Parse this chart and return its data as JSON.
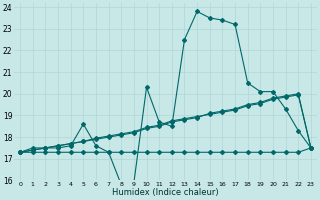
{
  "xlabel": "Humidex (Indice chaleur)",
  "background_color": "#c8e8e8",
  "grid_color": "#b0d4d4",
  "line_color": "#006868",
  "xlim": [
    -0.5,
    23.5
  ],
  "ylim": [
    16,
    24.2
  ],
  "xtick_labels": [
    "0",
    "1",
    "2",
    "3",
    "4",
    "5",
    "6",
    "7",
    "8",
    "9",
    "10",
    "11",
    "12",
    "13",
    "14",
    "15",
    "16",
    "17",
    "18",
    "19",
    "20",
    "21",
    "22",
    "23"
  ],
  "ytick_values": [
    16,
    17,
    18,
    19,
    20,
    21,
    22,
    23,
    24
  ],
  "series": {
    "main": [
      17.3,
      17.5,
      17.5,
      17.5,
      17.6,
      18.6,
      17.6,
      17.3,
      15.8,
      15.9,
      20.3,
      18.7,
      18.5,
      22.5,
      23.8,
      23.5,
      23.4,
      23.2,
      20.5,
      20.1,
      20.1,
      19.3,
      18.3,
      17.5
    ],
    "linear1": [
      17.3,
      17.4,
      17.5,
      17.6,
      17.7,
      17.8,
      17.9,
      18.0,
      18.1,
      18.2,
      18.4,
      18.5,
      18.7,
      18.8,
      18.9,
      19.1,
      19.2,
      19.3,
      19.5,
      19.6,
      19.8,
      19.9,
      20.0,
      17.5
    ],
    "linear2": [
      17.3,
      17.4,
      17.5,
      17.6,
      17.7,
      17.8,
      17.95,
      18.05,
      18.15,
      18.25,
      18.45,
      18.55,
      18.75,
      18.85,
      18.95,
      19.05,
      19.15,
      19.25,
      19.45,
      19.55,
      19.75,
      19.85,
      19.95,
      17.5
    ],
    "flat": [
      17.3,
      17.3,
      17.3,
      17.3,
      17.3,
      17.3,
      17.3,
      17.3,
      17.3,
      17.3,
      17.3,
      17.3,
      17.3,
      17.3,
      17.3,
      17.3,
      17.3,
      17.3,
      17.3,
      17.3,
      17.3,
      17.3,
      17.3,
      17.5
    ]
  }
}
